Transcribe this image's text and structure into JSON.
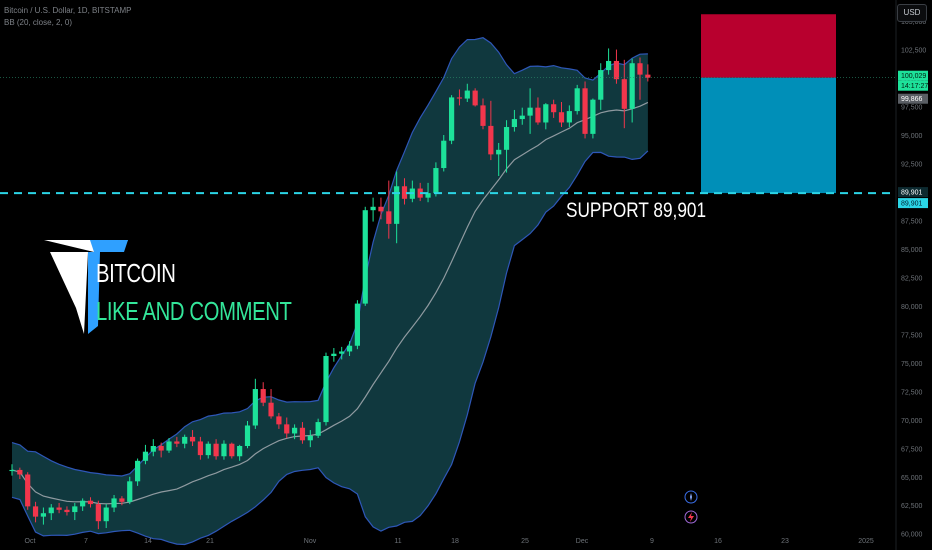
{
  "header": {
    "symbol_line": "Bitcoin / U.S. Dollar, 1D, BITSTAMP",
    "indicator_line": "BB (20, close, 2, 0)"
  },
  "currency_button": "USD",
  "brand": {
    "title": "BITCOIN",
    "subtitle": "LIKE AND COMMENT"
  },
  "annotation": {
    "support_text": "SUPPORT  89,901"
  },
  "price_labels": {
    "last_price": "100,029",
    "countdown": "14:17:27",
    "prev_price": "99,866",
    "support_1": "89,901",
    "support_2": "89,901"
  },
  "colors": {
    "background": "#000000",
    "up": "#1de29a",
    "down": "#f2364c",
    "band_fill": "#10383e",
    "band_line": "#2e57b8",
    "basis_line": "#8f9aa0",
    "support_line": "#2bd5e6",
    "stop_zone": "#b8002e",
    "target_zone": "#008fb8"
  },
  "chart_data": {
    "type": "candlestick",
    "title": "Bitcoin / U.S. Dollar, 1D, BITSTAMP",
    "y_axis": {
      "ticks": [
        60000,
        62500,
        65000,
        67500,
        70000,
        72500,
        75000,
        77500,
        80000,
        82500,
        85000,
        87500,
        90000,
        92500,
        95000,
        97500,
        100000,
        102500,
        105000
      ],
      "range": [
        59800,
        106500
      ]
    },
    "x_axis": {
      "ticks": [
        "Oct",
        "7",
        "14",
        "21",
        "Nov",
        "11",
        "18",
        "25",
        "Dec",
        "9",
        "16",
        "23",
        "2025"
      ]
    },
    "candles_ohlc": [
      [
        65500,
        66100,
        65100,
        65600
      ],
      [
        65600,
        65800,
        64800,
        65200
      ],
      [
        65200,
        65400,
        62100,
        62400
      ],
      [
        62400,
        62800,
        61000,
        61500
      ],
      [
        61500,
        62300,
        60800,
        61800
      ],
      [
        61800,
        62600,
        61200,
        62300
      ],
      [
        62300,
        62700,
        61800,
        62100
      ],
      [
        62100,
        62400,
        61600,
        61900
      ],
      [
        61900,
        62700,
        61200,
        62400
      ],
      [
        62400,
        63100,
        62000,
        62900
      ],
      [
        62900,
        63200,
        62300,
        62600
      ],
      [
        62600,
        62900,
        60400,
        61100
      ],
      [
        61100,
        62600,
        60500,
        62300
      ],
      [
        62300,
        63400,
        61900,
        63100
      ],
      [
        63100,
        63300,
        62500,
        62800
      ],
      [
        62800,
        65000,
        62600,
        64600
      ],
      [
        64600,
        66600,
        64200,
        66400
      ],
      [
        66400,
        67800,
        66100,
        67200
      ],
      [
        67200,
        68300,
        66800,
        67700
      ],
      [
        67700,
        68000,
        66700,
        67300
      ],
      [
        67300,
        68400,
        67100,
        68100
      ],
      [
        68100,
        68500,
        67600,
        67900
      ],
      [
        67900,
        68700,
        67500,
        68500
      ],
      [
        68500,
        69100,
        67700,
        68100
      ],
      [
        68100,
        68500,
        66500,
        66900
      ],
      [
        66900,
        68100,
        66600,
        67900
      ],
      [
        67900,
        68300,
        66500,
        66800
      ],
      [
        66800,
        68200,
        66500,
        67900
      ],
      [
        67900,
        68000,
        66600,
        66800
      ],
      [
        66800,
        67800,
        66400,
        67700
      ],
      [
        67700,
        69900,
        67500,
        69500
      ],
      [
        69500,
        73600,
        69200,
        72700
      ],
      [
        72700,
        73300,
        71200,
        71500
      ],
      [
        71500,
        72700,
        70100,
        70300
      ],
      [
        70300,
        70600,
        69200,
        69600
      ],
      [
        69600,
        70200,
        68400,
        68800
      ],
      [
        68800,
        69600,
        68300,
        69300
      ],
      [
        69300,
        69800,
        67900,
        68200
      ],
      [
        68200,
        69100,
        67600,
        68600
      ],
      [
        68600,
        70100,
        68400,
        69800
      ],
      [
        69800,
        75900,
        69500,
        75600
      ],
      [
        75600,
        76300,
        75100,
        75800
      ],
      [
        75800,
        76400,
        75300,
        76000
      ],
      [
        76000,
        76900,
        75600,
        76500
      ],
      [
        76500,
        80500,
        76200,
        80200
      ],
      [
        80200,
        88700,
        80000,
        88400
      ],
      [
        88400,
        89500,
        87400,
        88700
      ],
      [
        88700,
        89500,
        87600,
        88300
      ],
      [
        88300,
        91000,
        85900,
        87200
      ],
      [
        87200,
        91800,
        85500,
        90500
      ],
      [
        90500,
        91200,
        88900,
        89400
      ],
      [
        89400,
        91000,
        89100,
        90300
      ],
      [
        90300,
        90800,
        89200,
        89500
      ],
      [
        89500,
        90800,
        89100,
        89900
      ],
      [
        89900,
        92600,
        89600,
        92100
      ],
      [
        92100,
        95000,
        91800,
        94500
      ],
      [
        94500,
        98500,
        94200,
        98300
      ],
      [
        98300,
        99000,
        97600,
        98200
      ],
      [
        98200,
        99500,
        97900,
        98900
      ],
      [
        98900,
        99100,
        97500,
        97600
      ],
      [
        97600,
        98200,
        95500,
        95800
      ],
      [
        95800,
        98000,
        92800,
        93300
      ],
      [
        93300,
        94300,
        91400,
        93700
      ],
      [
        93700,
        96300,
        91700,
        95700
      ],
      [
        95700,
        97200,
        95300,
        96400
      ],
      [
        96400,
        97400,
        95900,
        96700
      ],
      [
        96700,
        99100,
        95100,
        97400
      ],
      [
        97400,
        98300,
        95900,
        96100
      ],
      [
        96100,
        97800,
        95500,
        97700
      ],
      [
        97700,
        98100,
        96500,
        97000
      ],
      [
        97000,
        97900,
        95700,
        96100
      ],
      [
        96100,
        97600,
        95700,
        97100
      ],
      [
        97100,
        99400,
        96800,
        99100
      ],
      [
        99100,
        99700,
        94700,
        95100
      ],
      [
        95100,
        98200,
        94700,
        98100
      ],
      [
        98100,
        101300,
        97200,
        100700
      ],
      [
        100700,
        102600,
        100300,
        101500
      ],
      [
        101500,
        102500,
        99500,
        99900
      ],
      [
        99900,
        101600,
        95600,
        97300
      ],
      [
        97300,
        101700,
        96100,
        101300
      ],
      [
        101300,
        101800,
        98100,
        100300
      ],
      [
        100300,
        101200,
        99700,
        100029
      ]
    ],
    "bollinger": {
      "period": 20,
      "stddev": 2,
      "source": "close",
      "offset": 0
    },
    "support_level": 89901,
    "trade_zones": {
      "stop_zone": {
        "from": 100029,
        "to": 105600
      },
      "target_zone": {
        "from": 89901,
        "to": 100029
      }
    }
  }
}
